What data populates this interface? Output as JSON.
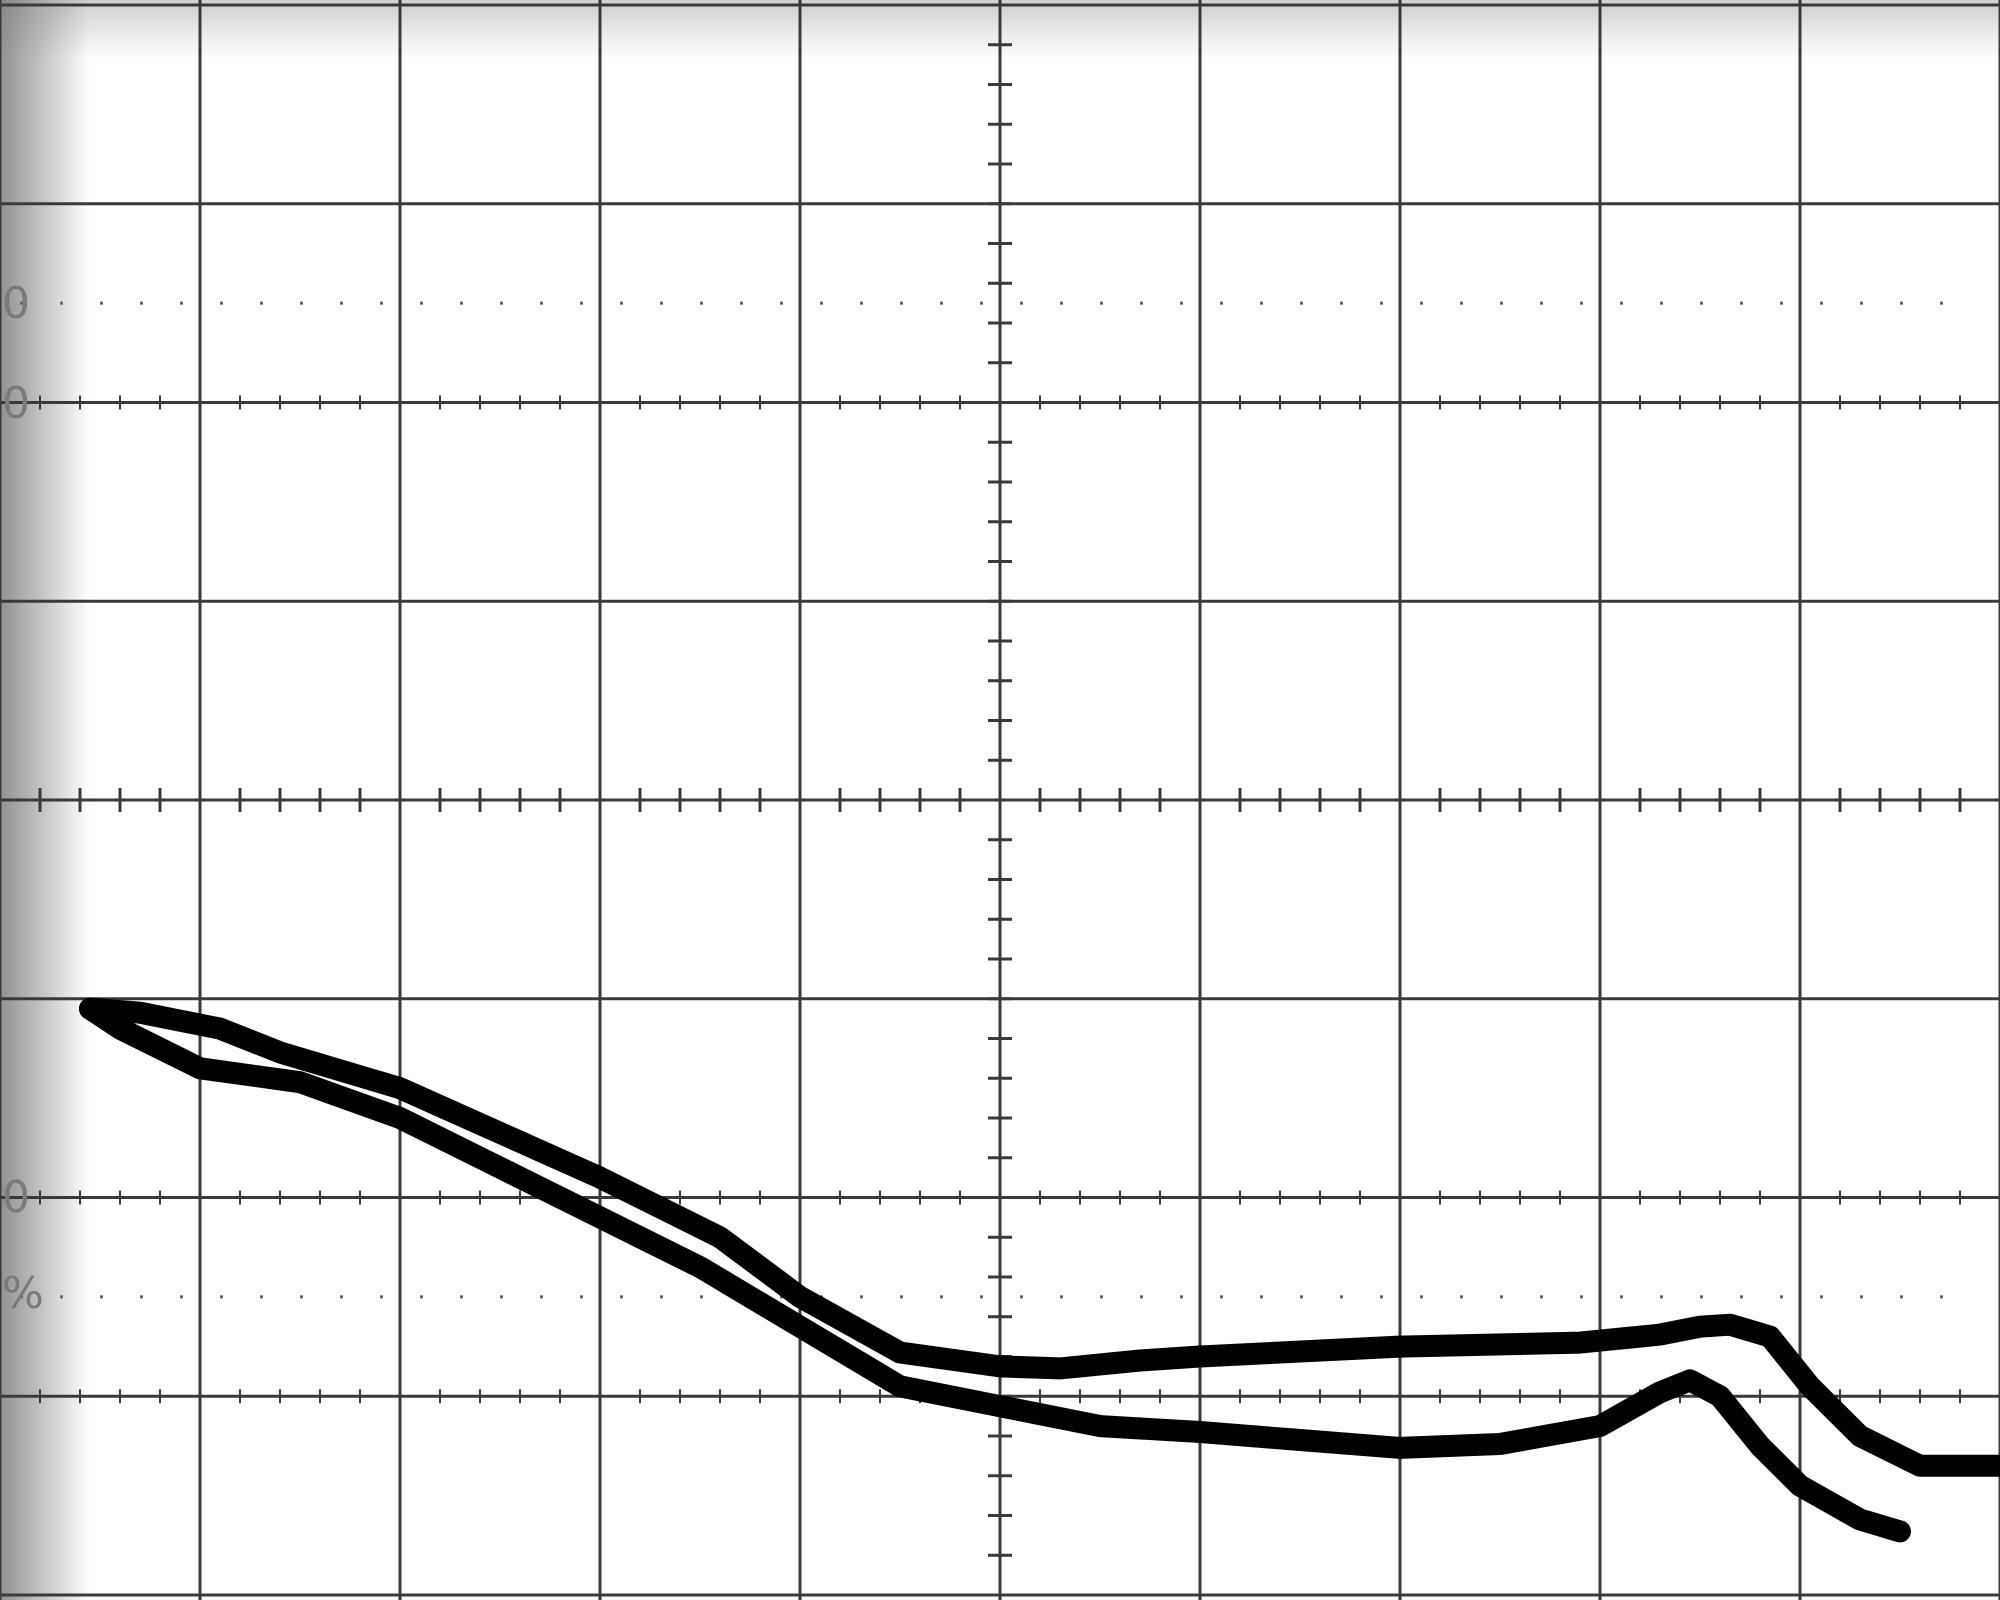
{
  "screen": {
    "edge_labels": [
      "0",
      "0",
      "0",
      "%"
    ]
  },
  "chart_data": {
    "type": "line",
    "title": "",
    "xlabel": "",
    "ylabel": "",
    "xlim": [
      -5,
      5
    ],
    "ylim": [
      -4,
      4
    ],
    "grid": true,
    "graticule": {
      "x_divisions": 10,
      "y_divisions": 8,
      "minor_per_division": 5
    },
    "dotted_reference_levels": [
      2.5,
      -2.5
    ],
    "colors": {
      "trace": "#000000",
      "grid": "#3a3a3a",
      "screen": "#ffffff"
    },
    "series": [
      {
        "x": [
          -4.55,
          -4.3,
          -3.9,
          -3.6,
          -3.0,
          -2.4,
          -2.0,
          -1.4,
          -1.0,
          -0.5,
          0.0,
          0.3,
          0.7,
          1.0,
          2.0,
          2.9,
          3.3,
          3.5,
          3.65,
          3.85,
          4.05,
          4.3,
          4.6,
          5.0
        ],
        "y": [
          -1.05,
          -1.07,
          -1.15,
          -1.27,
          -1.45,
          -1.72,
          -1.9,
          -2.2,
          -2.5,
          -2.78,
          -2.85,
          -2.86,
          -2.82,
          -2.8,
          -2.75,
          -2.73,
          -2.69,
          -2.65,
          -2.64,
          -2.7,
          -2.95,
          -3.2,
          -3.35,
          -3.35
        ]
      },
      {
        "x": [
          -4.55,
          -4.4,
          -4.0,
          -3.5,
          -3.0,
          -2.5,
          -2.0,
          -1.5,
          -1.0,
          -0.5,
          0.0,
          0.5,
          1.0,
          1.5,
          2.0,
          2.5,
          3.0,
          3.3,
          3.45,
          3.6,
          3.8,
          4.0,
          4.3,
          4.5
        ],
        "y": [
          -1.05,
          -1.15,
          -1.35,
          -1.42,
          -1.6,
          -1.85,
          -2.1,
          -2.35,
          -2.65,
          -2.95,
          -3.05,
          -3.15,
          -3.18,
          -3.22,
          -3.26,
          -3.24,
          -3.15,
          -2.98,
          -2.92,
          -3.0,
          -3.25,
          -3.45,
          -3.62,
          -3.68
        ]
      }
    ]
  }
}
